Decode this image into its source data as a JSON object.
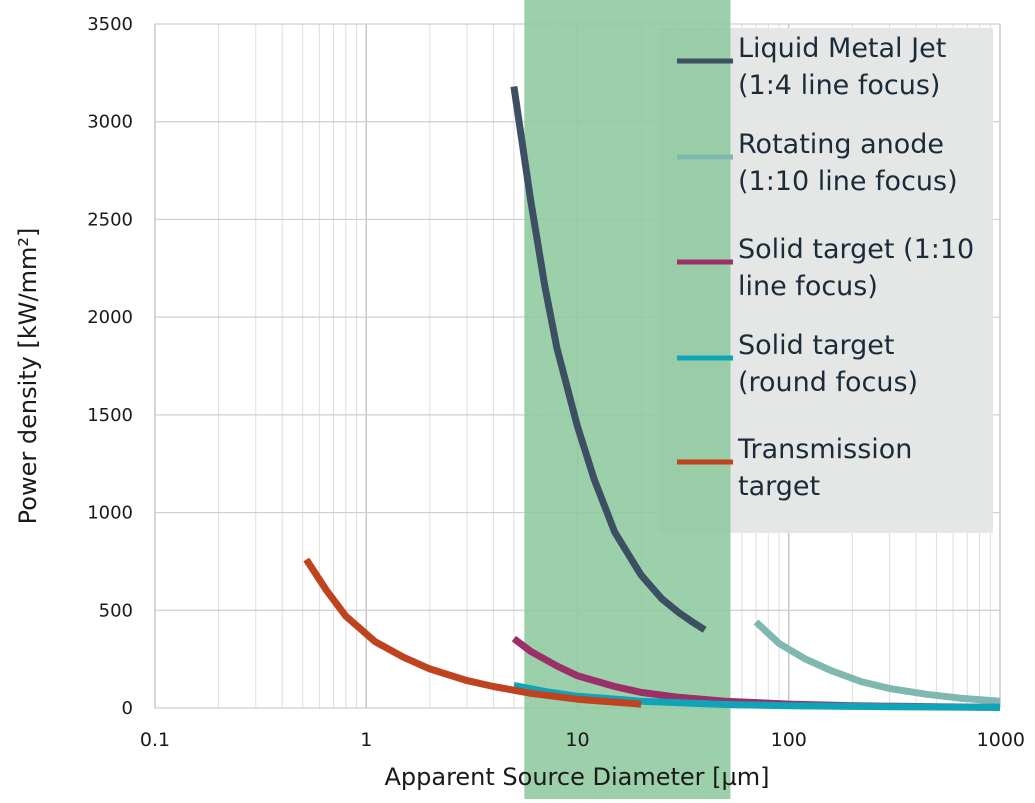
{
  "chart_data": {
    "type": "line",
    "title": "",
    "xlabel": "Apparent Source Diameter [µm]",
    "ylabel": "Power density [kW/mm²]",
    "x_scale": "log",
    "xlim": [
      0.1,
      1000
    ],
    "ylim": [
      0,
      3500
    ],
    "x_ticks": [
      0.1,
      1,
      10,
      100,
      1000
    ],
    "x_tick_labels": [
      "0.1",
      "1",
      "10",
      "100",
      "1000"
    ],
    "y_ticks": [
      0,
      500,
      1000,
      1500,
      2000,
      2500,
      3000,
      3500
    ],
    "y_tick_labels": [
      "0",
      "500",
      "1000",
      "1500",
      "2000",
      "2500",
      "3000",
      "3500"
    ],
    "grid": true,
    "legend_position": "top-right",
    "highlight_band": {
      "x_range": [
        5.6,
        53
      ],
      "color": "#8ec99e"
    },
    "series": [
      {
        "name": [
          "Liquid Metal Jet",
          "(1:4 line focus)"
        ],
        "color": "#3d4f62",
        "points": [
          [
            5,
            3180
          ],
          [
            6,
            2600
          ],
          [
            7,
            2160
          ],
          [
            8,
            1840
          ],
          [
            10,
            1440
          ],
          [
            12,
            1170
          ],
          [
            15,
            900
          ],
          [
            20,
            680
          ],
          [
            25,
            560
          ],
          [
            30,
            490
          ],
          [
            35,
            440
          ],
          [
            40,
            400
          ]
        ]
      },
      {
        "name": [
          "Rotating anode",
          "(1:10 line focus)"
        ],
        "color": "#7fb8b0",
        "points": [
          [
            70,
            440
          ],
          [
            90,
            330
          ],
          [
            120,
            250
          ],
          [
            160,
            190
          ],
          [
            220,
            135
          ],
          [
            300,
            100
          ],
          [
            450,
            70
          ],
          [
            650,
            50
          ],
          [
            1000,
            35
          ]
        ]
      },
      {
        "name": [
          "Solid target (1:10",
          "line focus)"
        ],
        "color": "#9b2f68",
        "points": [
          [
            5,
            355
          ],
          [
            6,
            290
          ],
          [
            8,
            215
          ],
          [
            10,
            165
          ],
          [
            15,
            110
          ],
          [
            20,
            80
          ],
          [
            30,
            55
          ],
          [
            50,
            35
          ],
          [
            100,
            20
          ],
          [
            200,
            12
          ],
          [
            500,
            6
          ],
          [
            1000,
            3
          ]
        ]
      },
      {
        "name": [
          "Solid target",
          "(round focus)"
        ],
        "color": "#0fa4b8",
        "points": [
          [
            5,
            115
          ],
          [
            7,
            85
          ],
          [
            10,
            60
          ],
          [
            20,
            35
          ],
          [
            50,
            18
          ],
          [
            100,
            12
          ],
          [
            300,
            6
          ],
          [
            1000,
            3
          ]
        ]
      },
      {
        "name": [
          "Transmission",
          "target"
        ],
        "color": "#c0431f",
        "points": [
          [
            0.52,
            760
          ],
          [
            0.65,
            600
          ],
          [
            0.8,
            470
          ],
          [
            1.1,
            340
          ],
          [
            1.5,
            260
          ],
          [
            2,
            200
          ],
          [
            3,
            140
          ],
          [
            4,
            110
          ],
          [
            6,
            75
          ],
          [
            10,
            45
          ],
          [
            15,
            30
          ],
          [
            20,
            20
          ]
        ]
      }
    ]
  }
}
